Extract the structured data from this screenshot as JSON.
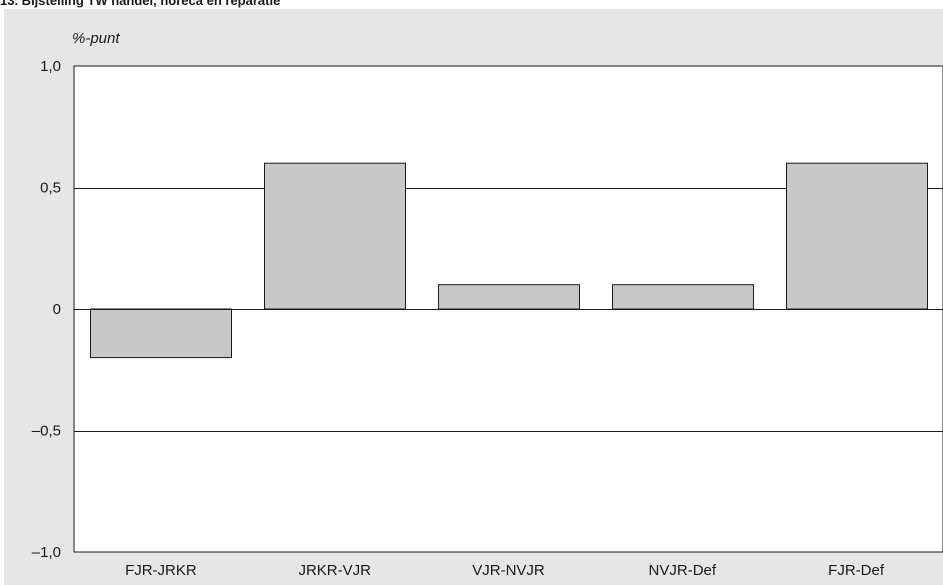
{
  "chart_data": {
    "type": "bar",
    "title": "13. Bijstelling TW handel, horeca en reparatie",
    "ylabel": "%-punt",
    "xlabel": "",
    "categories": [
      "FJR-JRKR",
      "JRKR-VJR",
      "VJR-NVJR",
      "NVJR-Def",
      "FJR-Def"
    ],
    "values": [
      -0.2,
      0.6,
      0.1,
      0.1,
      0.6
    ],
    "ylim": [
      -1.0,
      1.0
    ],
    "yticks": [
      -1.0,
      -0.5,
      0,
      0.5,
      1.0
    ],
    "ytick_labels": [
      "–1,0",
      "–0,5",
      "0",
      "0,5",
      "1,0"
    ],
    "grid": true,
    "colors": {
      "bar_fill": "#c8c8c8",
      "bar_stroke": "#1a1a1a",
      "panel_bg": "#e6e6e6",
      "plot_bg": "#ffffff"
    }
  }
}
